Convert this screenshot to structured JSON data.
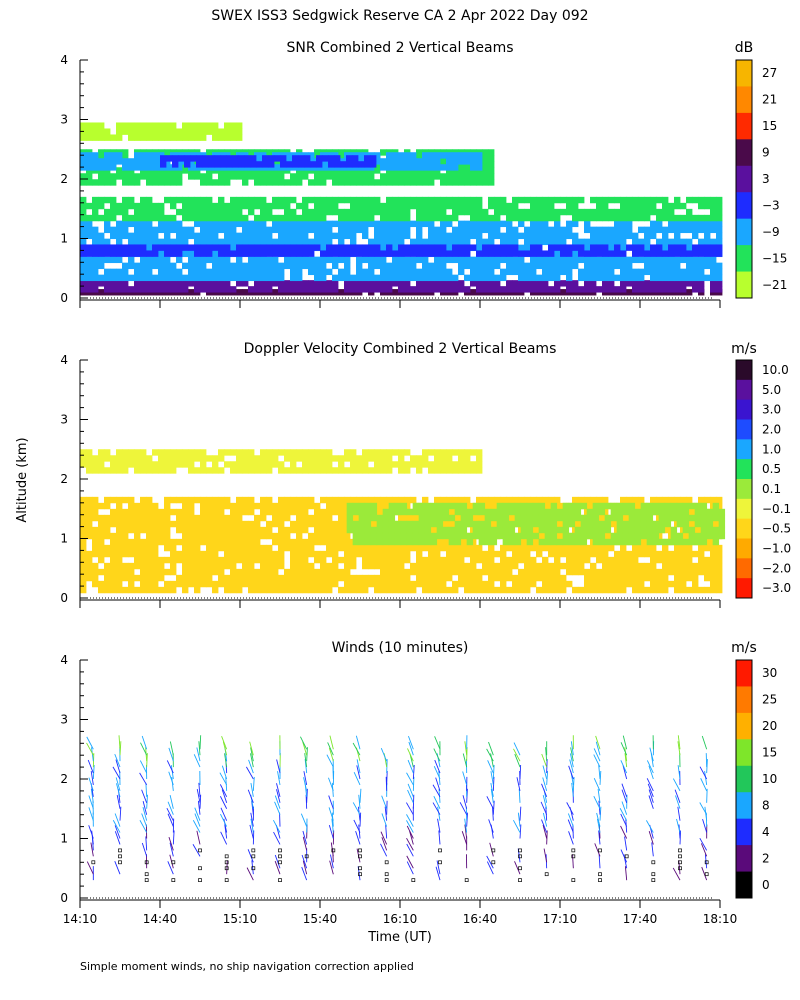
{
  "page_title": "SWEX ISS3 Sedgwick Reserve CA   2 Apr 2022 Day 092",
  "shared_ylabel": "Altitude (km)",
  "footnote": "Simple moment winds, no ship navigation correction applied",
  "chart_data": [
    {
      "type": "heatmap",
      "title": "SNR Combined 2 Vertical Beams",
      "ylabel": "Altitude (km)",
      "ylim": [
        0,
        4
      ],
      "yticks": [
        "0",
        "1",
        "2",
        "3",
        "4"
      ],
      "xlim_minutes": [
        0,
        240
      ],
      "xtick_minutes": [
        0,
        30,
        60,
        90,
        120,
        150,
        180,
        210,
        240
      ],
      "colorbar": {
        "unit": "dB",
        "labels": [
          "27",
          "21",
          "15",
          "9",
          "3",
          "−3",
          "−9",
          "−15",
          "−21"
        ],
        "colors": [
          "#f7b500",
          "#ff8800",
          "#ff2a00",
          "#4a0a4a",
          "#5a109e",
          "#1e2cff",
          "#1aa7ff",
          "#22e35a",
          "#b8ff2e"
        ]
      },
      "layers": [
        {
          "altitude_km": [
            0.05,
            0.15
          ],
          "value_db": 9,
          "minutes": [
            0,
            240
          ]
        },
        {
          "altitude_km": [
            0.15,
            0.3
          ],
          "value_db": 3,
          "minutes": [
            0,
            240
          ]
        },
        {
          "altitude_km": [
            0.3,
            1.3
          ],
          "value_db": -9,
          "minutes": [
            0,
            240
          ]
        },
        {
          "altitude_km": [
            0.75,
            0.9
          ],
          "value_db": -3,
          "minutes": [
            0,
            240
          ]
        },
        {
          "altitude_km": [
            1.3,
            1.7
          ],
          "value_db": -15,
          "minutes": [
            0,
            240
          ]
        },
        {
          "altitude_km": [
            1.9,
            2.5
          ],
          "value_db": -15,
          "minutes": [
            0,
            155
          ]
        },
        {
          "altitude_km": [
            2.15,
            2.45
          ],
          "value_db": -9,
          "minutes": [
            0,
            150
          ]
        },
        {
          "altitude_km": [
            2.25,
            2.4
          ],
          "value_db": -3,
          "minutes": [
            30,
            110
          ]
        },
        {
          "altitude_km": [
            2.7,
            2.95
          ],
          "value_db": -21,
          "minutes": [
            0,
            60
          ]
        }
      ]
    },
    {
      "type": "heatmap",
      "title": "Doppler Velocity Combined 2 Vertical Beams",
      "ylabel": "Altitude (km)",
      "ylim": [
        0,
        4
      ],
      "yticks": [
        "0",
        "1",
        "2",
        "3",
        "4"
      ],
      "xlim_minutes": [
        0,
        240
      ],
      "xtick_minutes": [
        0,
        30,
        60,
        90,
        120,
        150,
        180,
        210,
        240
      ],
      "colorbar": {
        "unit": "m/s",
        "labels": [
          "10.0",
          "5.0",
          "3.0",
          "2.0",
          "1.0",
          "0.5",
          "0.1",
          "−0.1",
          "−0.5",
          "−1.0",
          "−2.0",
          "−3.0"
        ],
        "colors": [
          "#2a0a2a",
          "#5a109e",
          "#3a14d0",
          "#1e4cff",
          "#1aa7ff",
          "#22e35a",
          "#9bea3a",
          "#eef53a",
          "#ffd61a",
          "#ffaa00",
          "#ff6a00",
          "#ff1a00"
        ]
      },
      "layers": [
        {
          "altitude_km": [
            0.1,
            1.7
          ],
          "value_ms": -0.5,
          "minutes": [
            0,
            240
          ]
        },
        {
          "altitude_km": [
            0.9,
            1.6
          ],
          "value_ms": 0.1,
          "minutes": [
            100,
            240
          ]
        },
        {
          "altitude_km": [
            2.1,
            2.5
          ],
          "value_ms": -0.1,
          "minutes": [
            0,
            150
          ]
        }
      ]
    },
    {
      "type": "barbs",
      "title": "Winds (10 minutes)",
      "ylabel": "Altitude (km)",
      "ylim": [
        0,
        4
      ],
      "yticks": [
        "0",
        "1",
        "2",
        "3",
        "4"
      ],
      "xlabel": "Time (UT)",
      "xlim_minutes": [
        0,
        240
      ],
      "xtick_minutes": [
        0,
        30,
        60,
        90,
        120,
        150,
        180,
        210,
        240
      ],
      "xtick_labels": [
        "14:10",
        "14:40",
        "15:10",
        "15:40",
        "16:10",
        "16:40",
        "17:10",
        "17:40",
        "18:10"
      ],
      "profile_minutes": [
        5,
        15,
        25,
        35,
        45,
        55,
        65,
        75,
        85,
        95,
        105,
        115,
        125,
        135,
        145,
        155,
        165,
        175,
        185,
        195,
        205,
        215,
        225,
        235
      ],
      "colorbar": {
        "unit": "m/s",
        "labels": [
          "30",
          "25",
          "20",
          "15",
          "10",
          "8",
          "4",
          "2",
          "0"
        ],
        "colors": [
          "#ff1a00",
          "#ff7a00",
          "#ffb000",
          "#7ee62a",
          "#22c75a",
          "#1aa7ff",
          "#1e2cff",
          "#5a0a7a",
          "#000000"
        ]
      }
    }
  ]
}
